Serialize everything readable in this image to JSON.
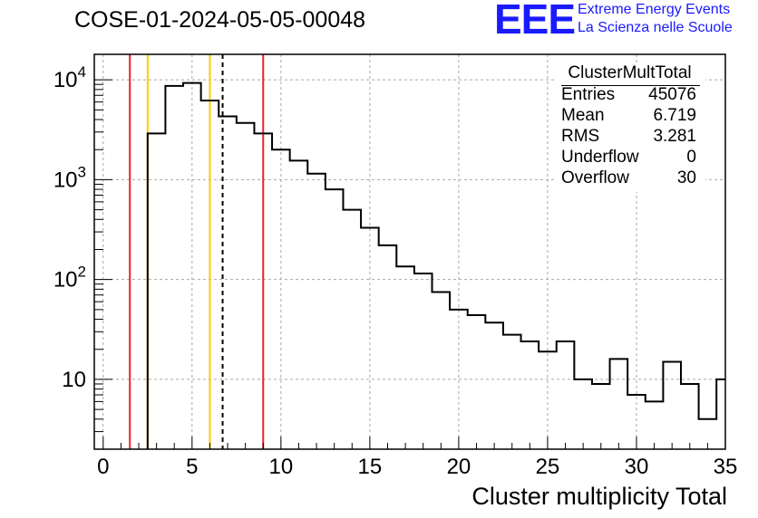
{
  "title": "COSE-01-2024-05-05-00048",
  "logo": {
    "letters": "EEE",
    "line1": "Extreme Energy Events",
    "line2": "La Scienza nelle Scuole",
    "color": "#1a1aff"
  },
  "stats_box": {
    "title": "ClusterMultTotal",
    "rows": [
      {
        "label": "Entries",
        "value": "45076"
      },
      {
        "label": "Mean",
        "value": "6.719"
      },
      {
        "label": "RMS",
        "value": "3.281"
      },
      {
        "label": "Underflow",
        "value": "0"
      },
      {
        "label": "Overflow",
        "value": "30"
      }
    ]
  },
  "chart_data": {
    "type": "histogram",
    "xlabel": "Cluster multiplicity Total",
    "ylabel": "",
    "xlim": [
      -0.5,
      35
    ],
    "ylim": [
      2,
      18000
    ],
    "yscale": "log",
    "grid": true,
    "bin_width": 1,
    "bins": [
      {
        "x0": 2.5,
        "count": 2900
      },
      {
        "x0": 3.5,
        "count": 8700
      },
      {
        "x0": 4.5,
        "count": 9300
      },
      {
        "x0": 5.5,
        "count": 6200
      },
      {
        "x0": 6.5,
        "count": 4300
      },
      {
        "x0": 7.5,
        "count": 3700
      },
      {
        "x0": 8.5,
        "count": 2900
      },
      {
        "x0": 9.5,
        "count": 2000
      },
      {
        "x0": 10.5,
        "count": 1550
      },
      {
        "x0": 11.5,
        "count": 1150
      },
      {
        "x0": 12.5,
        "count": 800
      },
      {
        "x0": 13.5,
        "count": 500
      },
      {
        "x0": 14.5,
        "count": 330
      },
      {
        "x0": 15.5,
        "count": 220
      },
      {
        "x0": 16.5,
        "count": 135
      },
      {
        "x0": 17.5,
        "count": 115
      },
      {
        "x0": 18.5,
        "count": 75
      },
      {
        "x0": 19.5,
        "count": 50
      },
      {
        "x0": 20.5,
        "count": 44
      },
      {
        "x0": 21.5,
        "count": 37
      },
      {
        "x0": 22.5,
        "count": 28
      },
      {
        "x0": 23.5,
        "count": 24
      },
      {
        "x0": 24.5,
        "count": 19
      },
      {
        "x0": 25.5,
        "count": 24
      },
      {
        "x0": 26.5,
        "count": 10
      },
      {
        "x0": 27.5,
        "count": 9
      },
      {
        "x0": 28.5,
        "count": 16
      },
      {
        "x0": 29.5,
        "count": 7
      },
      {
        "x0": 30.5,
        "count": 6
      },
      {
        "x0": 31.5,
        "count": 15
      },
      {
        "x0": 32.5,
        "count": 9
      },
      {
        "x0": 33.5,
        "count": 4
      },
      {
        "x0": 34.5,
        "count": 10
      }
    ],
    "x_ticks": [
      0,
      5,
      10,
      15,
      20,
      25,
      30,
      35
    ],
    "x_tick_labels": [
      "0",
      "5",
      "10",
      "15",
      "20",
      "25",
      "30",
      "35"
    ],
    "y_ticks": [
      10,
      100,
      1000,
      10000
    ],
    "y_tick_labels": [
      {
        "base": "10",
        "exp": ""
      },
      {
        "base": "10",
        "exp": "2"
      },
      {
        "base": "10",
        "exp": "3"
      },
      {
        "base": "10",
        "exp": "4"
      }
    ],
    "vertical_lines": [
      {
        "x": 1.5,
        "color": "#e8232a",
        "style": "solid"
      },
      {
        "x": 2.5,
        "color": "#ffcc00",
        "style": "solid"
      },
      {
        "x": 6.0,
        "color": "#ffcc00",
        "style": "solid"
      },
      {
        "x": 6.719,
        "color": "#000000",
        "style": "dashed"
      },
      {
        "x": 9.0,
        "color": "#e8232a",
        "style": "solid"
      }
    ]
  }
}
